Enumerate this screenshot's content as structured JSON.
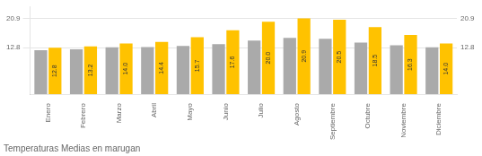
{
  "chart_data": {
    "type": "bar",
    "title": "Temperaturas Medias en marugan",
    "categories": [
      "Enero",
      "Febrero",
      "Marzo",
      "Abril",
      "Mayo",
      "Junio",
      "Julio",
      "Agosto",
      "Septiembre",
      "Octubre",
      "Noviembre",
      "Diciembre"
    ],
    "series": [
      {
        "color": "#AAAAAA",
        "values": [
          12.1,
          12.4,
          12.9,
          13.0,
          13.3,
          13.8,
          14.8,
          15.5,
          15.3,
          14.2,
          13.5,
          12.9
        ]
      },
      {
        "color": "#FFC200",
        "values": [
          12.8,
          13.2,
          14.0,
          14.4,
          15.7,
          17.6,
          20.0,
          20.9,
          20.5,
          18.5,
          16.3,
          14.0
        ],
        "value_labels": [
          "12.8",
          "13.2",
          "14.0",
          "14.4",
          "15.7",
          "17.6",
          "20.0",
          "20.9",
          "20.5",
          "18.5",
          "16.3",
          "14.0"
        ],
        "data_labels": true
      }
    ],
    "ylim": [
      0,
      24.035
    ],
    "yticks": [
      12.8,
      20.9
    ],
    "grid": true,
    "tick_labels": true
  }
}
